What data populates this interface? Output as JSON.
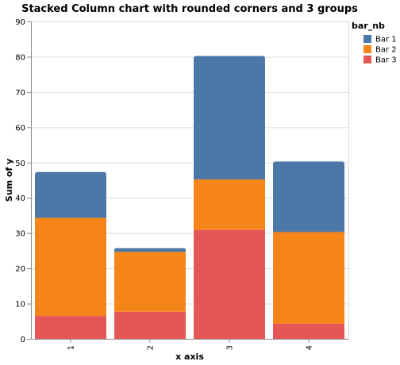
{
  "chart_data": {
    "type": "bar",
    "stacked": true,
    "title": "Stacked Column chart with rounded corners and 3 groups",
    "xlabel": "x axis",
    "ylabel": "Sum of y",
    "categories": [
      "1",
      "2",
      "3",
      "4"
    ],
    "ylim": [
      0,
      90
    ],
    "yticks": [
      0,
      10,
      20,
      30,
      40,
      50,
      60,
      70,
      80,
      90
    ],
    "grid": true,
    "legend": {
      "title": "bar_nb",
      "placement": "right"
    },
    "series": [
      {
        "name": "Bar 3",
        "color": "#e45756",
        "values": [
          6.5,
          7.7,
          30.9,
          4.3
        ]
      },
      {
        "name": "Bar 2",
        "color": "#f58518",
        "values": [
          27.8,
          17.0,
          14.3,
          26.0
        ]
      },
      {
        "name": "Bar 1",
        "color": "#4c78a8",
        "values": [
          13.0,
          1.0,
          35.0,
          20.0
        ]
      }
    ],
    "legend_order": [
      "Bar 1",
      "Bar 2",
      "Bar 3"
    ]
  }
}
